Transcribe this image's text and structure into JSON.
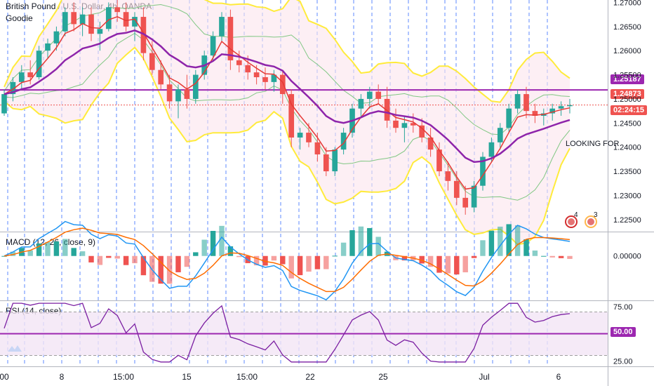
{
  "header": {
    "symbol_line": "British Pound / U.S. Dollar, 4h, OANDA",
    "indicator_name": "Goodie"
  },
  "price_axis": {
    "ticks": [
      "1.27000",
      "1.26500",
      "1.26000",
      "1.25500",
      "1.25000",
      "1.24500",
      "1.24000",
      "1.23500",
      "1.23000",
      "1.22500"
    ],
    "level_badge": "1.25187",
    "last_price_badge": "1.24873",
    "countdown": "02:24:15",
    "level_color": "#9c27b0",
    "last_price_color": "#ef5350"
  },
  "annotation": "LOOKING FOR",
  "event_badges": {
    "uk": "4",
    "us": "3"
  },
  "macd": {
    "label": "MACD (12, 26, close, 9)",
    "tick": "0.00000"
  },
  "rsi": {
    "label": "RSI (14, close)",
    "ticks": [
      "75.00",
      "25.00"
    ],
    "level_badge": "50.00"
  },
  "time_axis": {
    "labels": [
      "00",
      "8",
      "15:00",
      "15",
      "15:00",
      "22",
      "25",
      "Jul",
      "6"
    ]
  },
  "chart_data": {
    "type": "candlestick",
    "timeframe": "4h",
    "price_range": [
      1.2225,
      1.2705
    ],
    "candles": [
      [
        1.247,
        1.252,
        1.2465,
        1.251
      ],
      [
        1.251,
        1.2545,
        1.2495,
        1.2535
      ],
      [
        1.2535,
        1.257,
        1.252,
        1.2555
      ],
      [
        1.2555,
        1.258,
        1.253,
        1.2545
      ],
      [
        1.2545,
        1.261,
        1.254,
        1.26
      ],
      [
        1.26,
        1.2625,
        1.2585,
        1.2615
      ],
      [
        1.2615,
        1.265,
        1.26,
        1.264
      ],
      [
        1.264,
        1.269,
        1.263,
        1.268
      ],
      [
        1.268,
        1.27,
        1.264,
        1.2655
      ],
      [
        1.2655,
        1.269,
        1.263,
        1.2675
      ],
      [
        1.2675,
        1.269,
        1.262,
        1.2635
      ],
      [
        1.2635,
        1.266,
        1.26,
        1.2645
      ],
      [
        1.2645,
        1.27,
        1.264,
        1.269
      ],
      [
        1.269,
        1.2705,
        1.266,
        1.268
      ],
      [
        1.268,
        1.27,
        1.264,
        1.265
      ],
      [
        1.265,
        1.268,
        1.262,
        1.267
      ],
      [
        1.267,
        1.269,
        1.258,
        1.2595
      ],
      [
        1.2595,
        1.262,
        1.255,
        1.256
      ],
      [
        1.256,
        1.258,
        1.252,
        1.253
      ],
      [
        1.253,
        1.255,
        1.248,
        1.2495
      ],
      [
        1.2495,
        1.253,
        1.246,
        1.252
      ],
      [
        1.252,
        1.255,
        1.248,
        1.25
      ],
      [
        1.25,
        1.256,
        1.249,
        1.255
      ],
      [
        1.255,
        1.26,
        1.254,
        1.259
      ],
      [
        1.259,
        1.264,
        1.258,
        1.263
      ],
      [
        1.263,
        1.268,
        1.262,
        1.267
      ],
      [
        1.267,
        1.2685,
        1.256,
        1.258
      ],
      [
        1.258,
        1.26,
        1.2555,
        1.257
      ],
      [
        1.257,
        1.259,
        1.254,
        1.2555
      ],
      [
        1.2555,
        1.257,
        1.253,
        1.2545
      ],
      [
        1.2545,
        1.2565,
        1.252,
        1.2535
      ],
      [
        1.2535,
        1.256,
        1.2515,
        1.255
      ],
      [
        1.255,
        1.256,
        1.249,
        1.251
      ],
      [
        1.251,
        1.252,
        1.24,
        1.242
      ],
      [
        1.242,
        1.244,
        1.2395,
        1.243
      ],
      [
        1.243,
        1.245,
        1.24,
        1.241
      ],
      [
        1.241,
        1.243,
        1.237,
        1.2385
      ],
      [
        1.2385,
        1.24,
        1.234,
        1.235
      ],
      [
        1.235,
        1.24,
        1.234,
        1.2395
      ],
      [
        1.2395,
        1.244,
        1.2385,
        1.243
      ],
      [
        1.243,
        1.249,
        1.242,
        1.248
      ],
      [
        1.248,
        1.251,
        1.246,
        1.25
      ],
      [
        1.25,
        1.2525,
        1.248,
        1.2515
      ],
      [
        1.2515,
        1.253,
        1.249,
        1.25
      ],
      [
        1.25,
        1.2525,
        1.244,
        1.2455
      ],
      [
        1.2455,
        1.248,
        1.243,
        1.244
      ],
      [
        1.244,
        1.2465,
        1.241,
        1.245
      ],
      [
        1.245,
        1.247,
        1.243,
        1.2445
      ],
      [
        1.2445,
        1.246,
        1.241,
        1.242
      ],
      [
        1.242,
        1.244,
        1.238,
        1.2395
      ],
      [
        1.2395,
        1.241,
        1.234,
        1.235
      ],
      [
        1.235,
        1.237,
        1.231,
        1.233
      ],
      [
        1.233,
        1.235,
        1.228,
        1.2295
      ],
      [
        1.2295,
        1.232,
        1.226,
        1.2275
      ],
      [
        1.2275,
        1.233,
        1.2265,
        1.232
      ],
      [
        1.232,
        1.239,
        1.231,
        1.238
      ],
      [
        1.238,
        1.242,
        1.237,
        1.241
      ],
      [
        1.241,
        1.245,
        1.2395,
        1.244
      ],
      [
        1.244,
        1.249,
        1.243,
        1.248
      ],
      [
        1.248,
        1.252,
        1.247,
        1.251
      ],
      [
        1.251,
        1.2525,
        1.246,
        1.2475
      ],
      [
        1.2475,
        1.249,
        1.245,
        1.2465
      ],
      [
        1.2465,
        1.248,
        1.2445,
        1.247
      ],
      [
        1.247,
        1.249,
        1.2455,
        1.248
      ],
      [
        1.248,
        1.2495,
        1.2465,
        1.2485
      ],
      [
        1.2485,
        1.25,
        1.247,
        1.2487
      ]
    ],
    "resistance_level": 1.25187,
    "last_price": 1.24873,
    "macd_range": [
      -0.006,
      0.0032
    ],
    "rsi_range": [
      20,
      80
    ],
    "rsi_levels": [
      70,
      50,
      30
    ]
  },
  "colors": {
    "up": "#26a69a",
    "down": "#ef5350",
    "ma_purple": "#8e24aa",
    "band_yellow": "#ffeb3b",
    "band_green": "#81c784",
    "grid_blue": "#2962ff"
  }
}
